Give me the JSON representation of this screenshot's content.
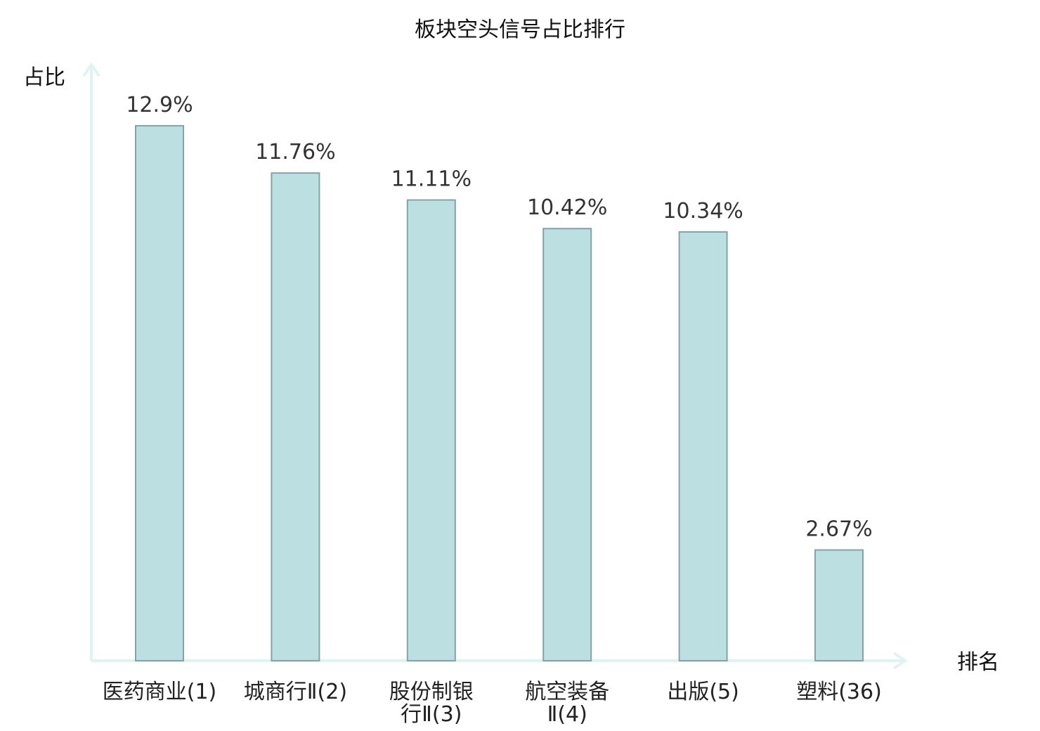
{
  "chart_data": {
    "type": "bar",
    "title": "板块空头信号占比排行",
    "ylabel": "占比",
    "xlabel": "排名",
    "categories": [
      [
        "医药商业(1)"
      ],
      [
        "城商行Ⅱ(2)"
      ],
      [
        "股份制银",
        "行Ⅱ(3)"
      ],
      [
        "航空装备",
        "Ⅱ(4)"
      ],
      [
        "出版(5)"
      ],
      [
        "塑料(36)"
      ]
    ],
    "values": [
      12.9,
      11.76,
      11.11,
      10.42,
      10.34,
      2.67
    ],
    "value_labels": [
      "12.9%",
      "11.76%",
      "11.11%",
      "10.42%",
      "10.34%",
      "2.67%"
    ],
    "highlight": [
      false,
      false,
      false,
      false,
      false,
      true
    ],
    "ylim": [
      0,
      15
    ],
    "grid": false,
    "colors": {
      "bar_fill": "#bce0e2",
      "bar_stroke": "#84a3a5",
      "axis": "#e0f3f1",
      "highlight_text": "#e41a1c",
      "label_text": "#333333"
    }
  }
}
